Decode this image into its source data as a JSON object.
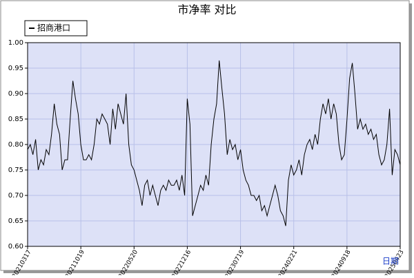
{
  "chart_data": {
    "type": "line",
    "title": "市净率  对比",
    "x_label": "日期",
    "categories": [
      "20210317",
      null,
      null,
      null,
      null,
      null,
      null,
      null,
      null,
      null,
      null,
      null,
      null,
      null,
      null,
      null,
      null,
      null,
      null,
      null,
      "20211019",
      null,
      null,
      null,
      null,
      null,
      null,
      null,
      null,
      null,
      null,
      null,
      null,
      null,
      null,
      null,
      null,
      null,
      null,
      null,
      "20220520",
      null,
      null,
      null,
      null,
      null,
      null,
      null,
      null,
      null,
      null,
      null,
      null,
      null,
      null,
      null,
      null,
      null,
      null,
      null,
      "20221216",
      null,
      null,
      null,
      null,
      null,
      null,
      null,
      null,
      null,
      null,
      null,
      null,
      null,
      null,
      null,
      null,
      null,
      null,
      null,
      "20230719",
      null,
      null,
      null,
      null,
      null,
      null,
      null,
      null,
      null,
      null,
      null,
      null,
      null,
      null,
      null,
      null,
      null,
      null,
      null,
      "20240221",
      null,
      null,
      null,
      null,
      null,
      null,
      null,
      null,
      null,
      null,
      null,
      null,
      null,
      null,
      null,
      null,
      null,
      null,
      null,
      "20240918",
      null,
      null,
      null,
      null,
      null,
      null,
      null,
      null,
      null,
      null,
      null,
      null,
      null,
      null,
      null,
      null,
      null,
      null,
      null,
      "20250423"
    ],
    "series": [
      {
        "name": "招商港口",
        "color": "#000000",
        "values": [
          0.79,
          0.8,
          0.78,
          0.81,
          0.75,
          0.77,
          0.76,
          0.79,
          0.78,
          0.82,
          0.88,
          0.84,
          0.82,
          0.75,
          0.77,
          0.77,
          0.85,
          0.925,
          0.89,
          0.86,
          0.8,
          0.77,
          0.77,
          0.78,
          0.77,
          0.8,
          0.85,
          0.84,
          0.86,
          0.85,
          0.84,
          0.8,
          0.87,
          0.83,
          0.88,
          0.86,
          0.84,
          0.9,
          0.8,
          0.76,
          0.75,
          0.73,
          0.71,
          0.68,
          0.72,
          0.73,
          0.7,
          0.72,
          0.7,
          0.68,
          0.71,
          0.72,
          0.71,
          0.73,
          0.72,
          0.72,
          0.73,
          0.71,
          0.74,
          0.7,
          0.89,
          0.84,
          0.66,
          0.68,
          0.7,
          0.72,
          0.71,
          0.74,
          0.72,
          0.8,
          0.85,
          0.88,
          0.965,
          0.91,
          0.86,
          0.78,
          0.81,
          0.79,
          0.8,
          0.77,
          0.79,
          0.75,
          0.73,
          0.72,
          0.7,
          0.7,
          0.69,
          0.7,
          0.67,
          0.68,
          0.66,
          0.68,
          0.7,
          0.72,
          0.7,
          0.67,
          0.66,
          0.64,
          0.73,
          0.76,
          0.74,
          0.75,
          0.77,
          0.74,
          0.78,
          0.8,
          0.81,
          0.79,
          0.82,
          0.8,
          0.85,
          0.88,
          0.86,
          0.89,
          0.85,
          0.88,
          0.86,
          0.8,
          0.77,
          0.78,
          0.85,
          0.93,
          0.96,
          0.9,
          0.83,
          0.85,
          0.83,
          0.84,
          0.82,
          0.83,
          0.81,
          0.82,
          0.78,
          0.76,
          0.77,
          0.8,
          0.87,
          0.74,
          0.79,
          0.78,
          0.76
        ]
      }
    ],
    "ylim": [
      0.6,
      1.0
    ],
    "yticks": [
      {
        "value": 0.6,
        "label": "0.60"
      },
      {
        "value": 0.65,
        "label": "0.65"
      },
      {
        "value": 0.7,
        "label": "0.70"
      },
      {
        "value": 0.75,
        "label": "0.75"
      },
      {
        "value": 0.8,
        "label": "0.80"
      },
      {
        "value": 0.85,
        "label": "0.85"
      },
      {
        "value": 0.9,
        "label": "0.90"
      },
      {
        "value": 0.95,
        "label": "0.95"
      },
      {
        "value": 1.0,
        "label": "1.00"
      }
    ],
    "grid": true,
    "legend": "top-left",
    "background": "#dde1f7"
  }
}
